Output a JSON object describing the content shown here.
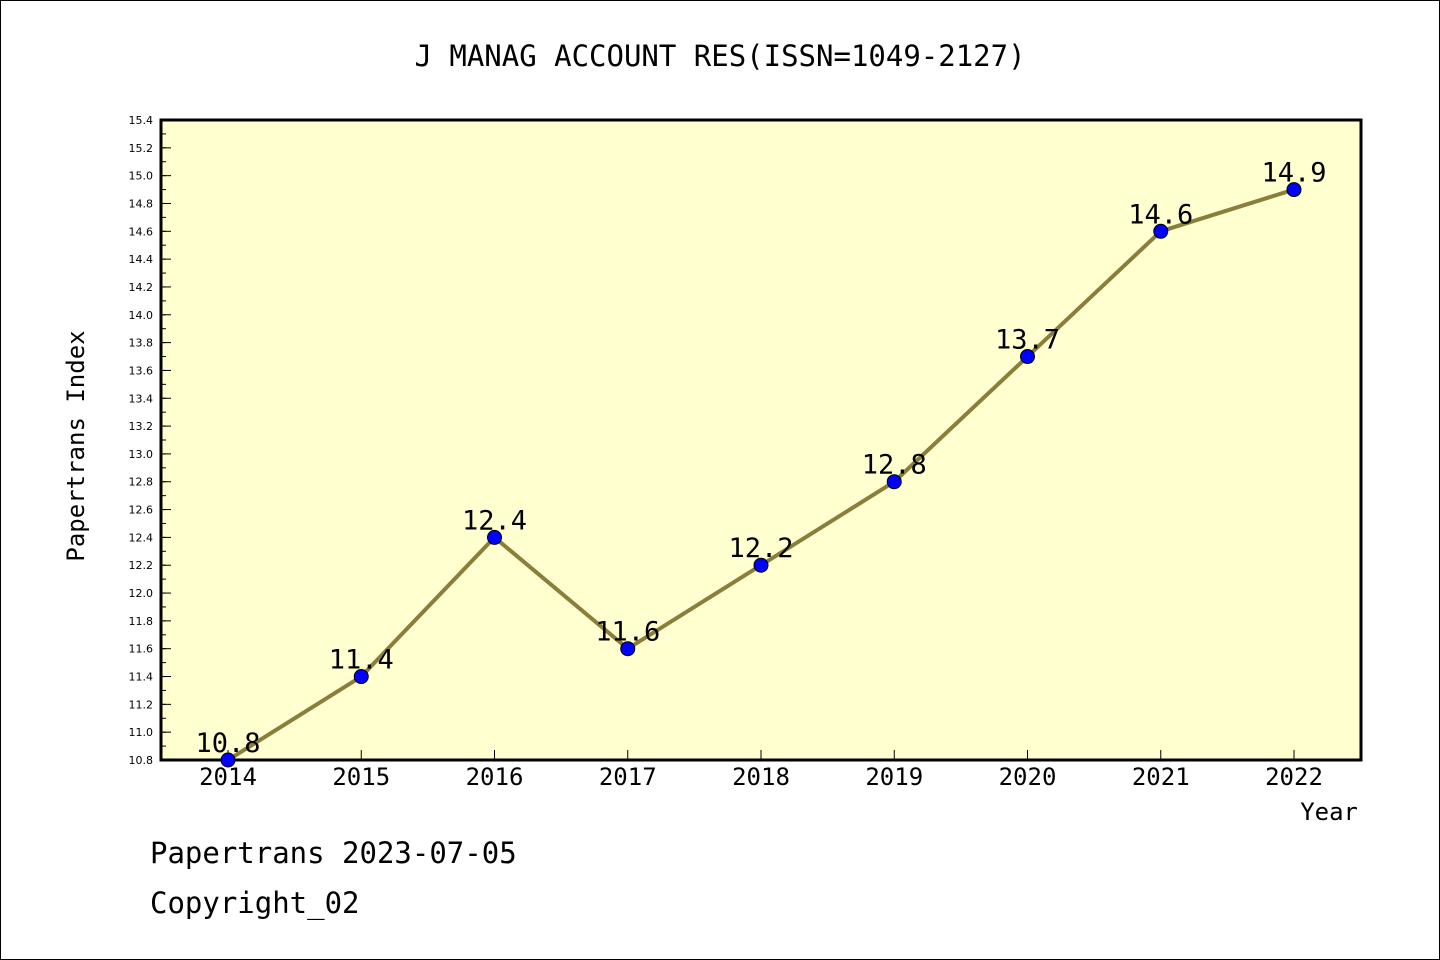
{
  "chart_data": {
    "type": "line",
    "title": "J MANAG ACCOUNT RES(ISSN=1049-2127)",
    "xlabel": "Year",
    "ylabel": "Papertrans Index",
    "x": [
      "2014",
      "2015",
      "2016",
      "2017",
      "2018",
      "2019",
      "2020",
      "2021",
      "2022"
    ],
    "series": [
      {
        "values": [
          10.8,
          11.4,
          12.4,
          11.6,
          12.2,
          12.8,
          13.7,
          14.6,
          14.9
        ],
        "labels": [
          "10.8",
          "11.4",
          "12.4",
          "11.6",
          "12.2",
          "12.8",
          "13.7",
          "14.6",
          "14.9"
        ],
        "line_color": "#8b7d3a",
        "marker_color": "#0000ff"
      }
    ],
    "ylim": [
      10.8,
      15.4
    ],
    "yticks": [
      "10.8",
      "11.0",
      "11.2",
      "11.4",
      "11.6",
      "11.8",
      "12.0",
      "12.2",
      "12.4",
      "12.6",
      "12.8",
      "13.0",
      "13.2",
      "13.4",
      "13.6",
      "13.8",
      "14.0",
      "14.2",
      "14.4",
      "14.6",
      "14.8",
      "15.0",
      "15.2",
      "15.4"
    ],
    "plot_background": "#ffffd0",
    "grid": false,
    "legend": "none"
  },
  "footer": {
    "line1": "Papertrans 2023-07-05",
    "line2": "Copyright_02"
  }
}
